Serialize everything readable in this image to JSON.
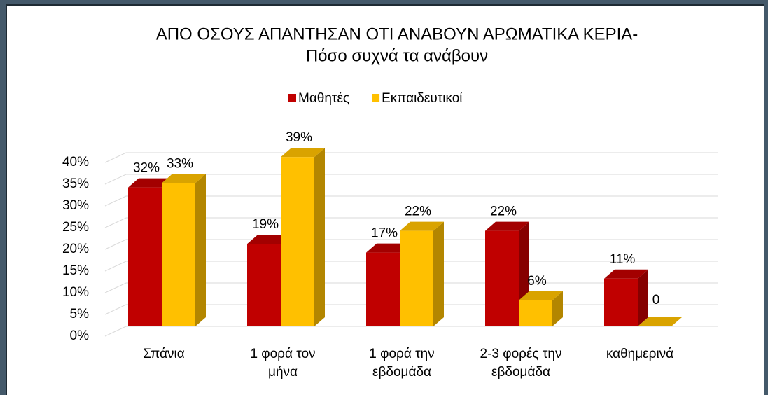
{
  "chart_data": {
    "type": "bar3d",
    "title": "ΑΠΟ ΟΣΟΥΣ ΑΠΑΝΤΗΣΑΝ ΟΤΙ ΑΝΑΒΟΥΝ ΑΡΩΜΑΤΙΚΑ ΚΕΡΙΑ-",
    "subtitle": "Πόσο συχνά τα ανάβουν",
    "categories": [
      "Σπάνια",
      "1 φορά τον μήνα",
      "1 φορά την εβδομάδα",
      "2-3 φορές την εβδομάδα",
      "καθημερινά"
    ],
    "series": [
      {
        "name": "Μαθητές",
        "color": "#c00000",
        "values": [
          32,
          19,
          17,
          22,
          11
        ],
        "value_labels": [
          "32%",
          "19%",
          "17%",
          "22%",
          "11%"
        ]
      },
      {
        "name": "Εκπαιδευτικοί",
        "color": "#ffc000",
        "values": [
          33,
          39,
          22,
          6,
          0
        ],
        "value_labels": [
          "33%",
          "39%",
          "22%",
          "6%",
          "0"
        ]
      }
    ],
    "ylim": [
      0,
      40
    ],
    "yticks": [
      {
        "value": 0,
        "label": "0%"
      },
      {
        "value": 5,
        "label": "5%"
      },
      {
        "value": 10,
        "label": "10%"
      },
      {
        "value": 15,
        "label": "15%"
      },
      {
        "value": 20,
        "label": "20%"
      },
      {
        "value": 25,
        "label": "25%"
      },
      {
        "value": 30,
        "label": "30%"
      },
      {
        "value": 35,
        "label": "35%"
      },
      {
        "value": 40,
        "label": "40%"
      }
    ],
    "grid": true,
    "legend": "top"
  }
}
